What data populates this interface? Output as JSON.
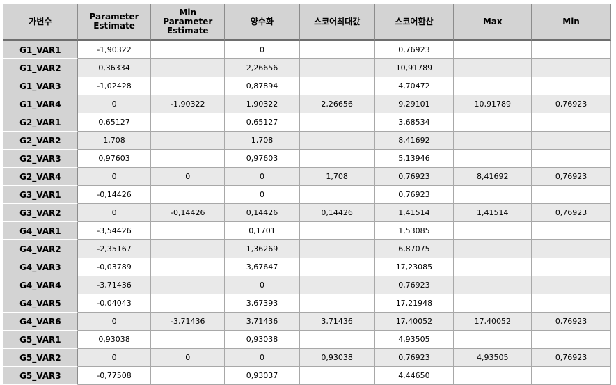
{
  "columns": [
    "가변수",
    "Parameter\nEstimate",
    "Min\nParameter\nEstimate",
    "양수화",
    "스코어최대값",
    "스코어환산",
    "Max",
    "Min"
  ],
  "rows": [
    [
      "G1_VAR1",
      "-1,90322",
      "",
      "0",
      "",
      "0,76923",
      "",
      ""
    ],
    [
      "G1_VAR2",
      "0,36334",
      "",
      "2,26656",
      "",
      "10,91789",
      "",
      ""
    ],
    [
      "G1_VAR3",
      "-1,02428",
      "",
      "0,87894",
      "",
      "4,70472",
      "",
      ""
    ],
    [
      "G1_VAR4",
      "0",
      "-1,90322",
      "1,90322",
      "2,26656",
      "9,29101",
      "10,91789",
      "0,76923"
    ],
    [
      "G2_VAR1",
      "0,65127",
      "",
      "0,65127",
      "",
      "3,68534",
      "",
      ""
    ],
    [
      "G2_VAR2",
      "1,708",
      "",
      "1,708",
      "",
      "8,41692",
      "",
      ""
    ],
    [
      "G2_VAR3",
      "0,97603",
      "",
      "0,97603",
      "",
      "5,13946",
      "",
      ""
    ],
    [
      "G2_VAR4",
      "0",
      "0",
      "0",
      "1,708",
      "0,76923",
      "8,41692",
      "0,76923"
    ],
    [
      "G3_VAR1",
      "-0,14426",
      "",
      "0",
      "",
      "0,76923",
      "",
      ""
    ],
    [
      "G3_VAR2",
      "0",
      "-0,14426",
      "0,14426",
      "0,14426",
      "1,41514",
      "1,41514",
      "0,76923"
    ],
    [
      "G4_VAR1",
      "-3,54426",
      "",
      "0,1701",
      "",
      "1,53085",
      "",
      ""
    ],
    [
      "G4_VAR2",
      "-2,35167",
      "",
      "1,36269",
      "",
      "6,87075",
      "",
      ""
    ],
    [
      "G4_VAR3",
      "-0,03789",
      "",
      "3,67647",
      "",
      "17,23085",
      "",
      ""
    ],
    [
      "G4_VAR4",
      "-3,71436",
      "",
      "0",
      "",
      "0,76923",
      "",
      ""
    ],
    [
      "G4_VAR5",
      "-0,04043",
      "",
      "3,67393",
      "",
      "17,21948",
      "",
      ""
    ],
    [
      "G4_VAR6",
      "0",
      "-3,71436",
      "3,71436",
      "3,71436",
      "17,40052",
      "17,40052",
      "0,76923"
    ],
    [
      "G5_VAR1",
      "0,93038",
      "",
      "0,93038",
      "",
      "4,93505",
      "",
      ""
    ],
    [
      "G5_VAR2",
      "0",
      "0",
      "0",
      "0,93038",
      "0,76923",
      "4,93505",
      "0,76923"
    ],
    [
      "G5_VAR3",
      "-0,77508",
      "",
      "0,93037",
      "",
      "4,44650",
      "",
      ""
    ]
  ]
}
